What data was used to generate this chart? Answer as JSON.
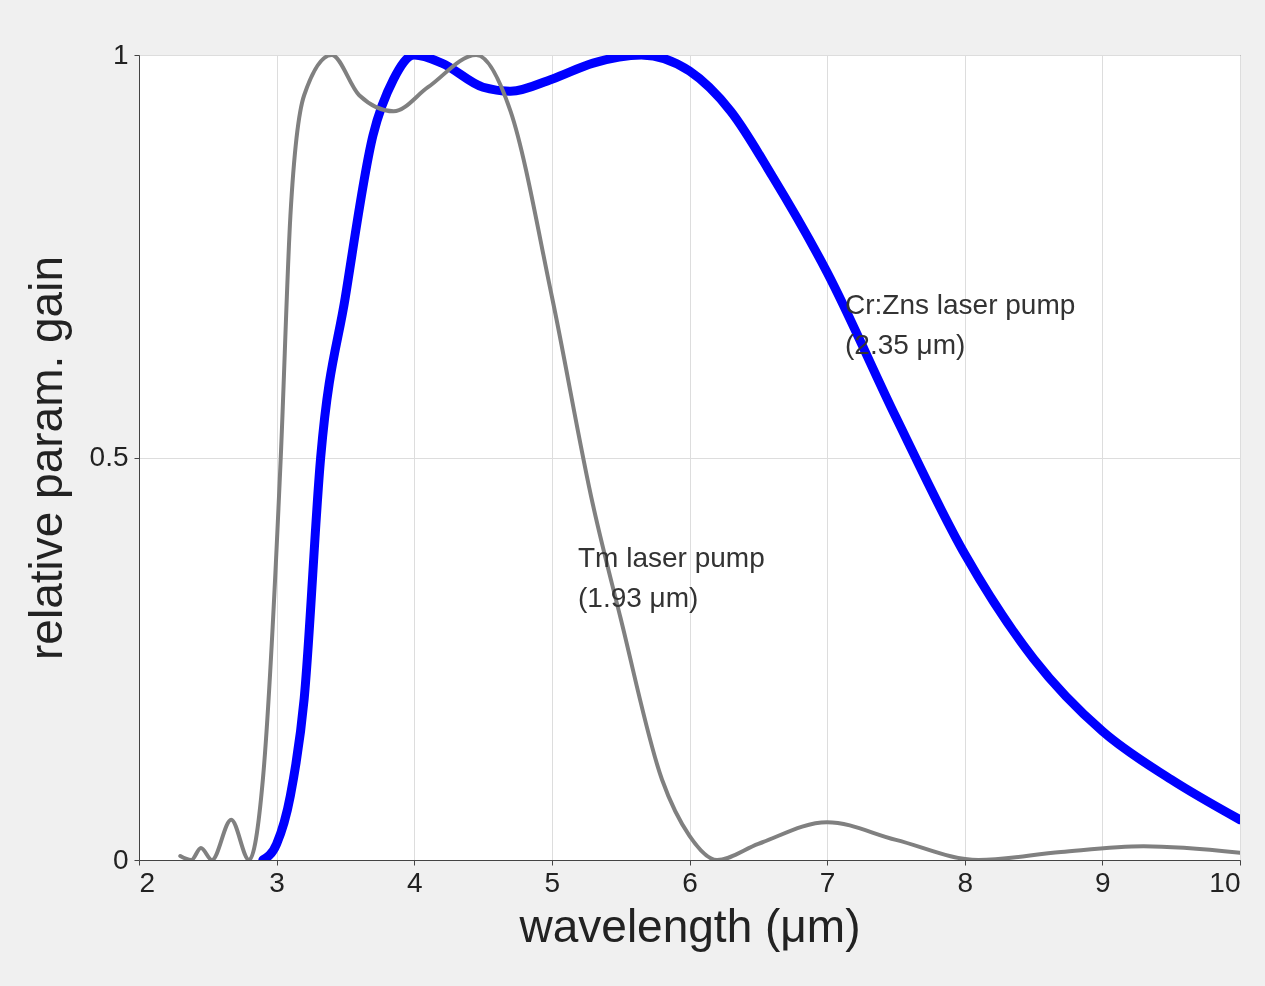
{
  "chart_data": {
    "type": "line",
    "xlabel": "wavelength (μm)",
    "ylabel": "relative param. gain",
    "xlim": [
      2,
      10
    ],
    "ylim": [
      0,
      1
    ],
    "xticks": [
      2,
      3,
      4,
      5,
      6,
      7,
      8,
      9,
      10
    ],
    "yticks": [
      0,
      0.5,
      1
    ],
    "grid": true,
    "series": [
      {
        "color": "#0000ff",
        "x": [
          2.9,
          3.0,
          3.1,
          3.2,
          3.32,
          3.5,
          3.7,
          3.85,
          4.0,
          4.2,
          4.5,
          4.7,
          5.0,
          5.3,
          5.65,
          6.0,
          6.3,
          6.6,
          7.0,
          7.5,
          8.0,
          8.5,
          9.0,
          9.5,
          10
        ],
        "values": [
          0,
          0.02,
          0.08,
          0.2,
          0.5,
          0.7,
          0.9,
          0.97,
          1.0,
          0.99,
          0.96,
          0.955,
          0.97,
          0.99,
          1.0,
          0.98,
          0.93,
          0.85,
          0.73,
          0.55,
          0.38,
          0.25,
          0.16,
          0.1,
          0.05
        ]
      },
      {
        "color": "#808080",
        "x": [
          2.3,
          2.38,
          2.45,
          2.53,
          2.67,
          2.8,
          2.9,
          3.03,
          3.1,
          3.2,
          3.4,
          3.6,
          3.85,
          4.1,
          4.45,
          4.7,
          5.0,
          5.3,
          5.5,
          5.8,
          6.0,
          6.2,
          6.5,
          7.0,
          7.5,
          8.1,
          8.7,
          9.3,
          10
        ],
        "values": [
          0.005,
          0,
          0.015,
          0,
          0.05,
          0,
          0.1,
          0.5,
          0.8,
          0.95,
          1.0,
          0.95,
          0.93,
          0.96,
          1.0,
          0.93,
          0.7,
          0.44,
          0.3,
          0.1,
          0.03,
          0,
          0.02,
          0.047,
          0.025,
          0,
          0.01,
          0.017,
          0.009
        ]
      }
    ],
    "annotations": [
      "Cr:Zns laser pump\n(2.35 μm)",
      "Tm laser pump\n(1.93 μm)"
    ]
  }
}
